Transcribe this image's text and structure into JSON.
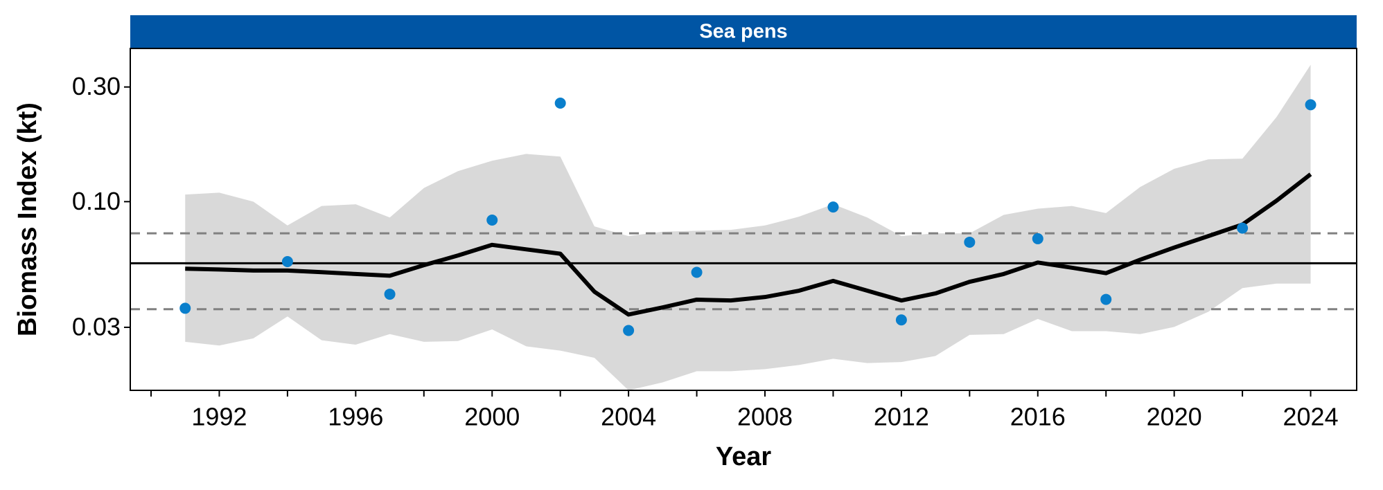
{
  "chart_data": {
    "type": "line",
    "strip_title": "Sea pens",
    "xlabel": "Year",
    "ylabel": "Biomass Index (kt)",
    "yscale": "log",
    "x": [
      1991,
      1992,
      1993,
      1994,
      1995,
      1996,
      1997,
      1998,
      1999,
      2000,
      2001,
      2002,
      2003,
      2004,
      2005,
      2006,
      2007,
      2008,
      2009,
      2010,
      2011,
      2012,
      2013,
      2014,
      2015,
      2016,
      2017,
      2018,
      2019,
      2020,
      2021,
      2022,
      2023,
      2024
    ],
    "values": [
      0.0526,
      0.0522,
      0.0517,
      0.0517,
      0.0509,
      0.05,
      0.0492,
      0.0544,
      0.0597,
      0.0661,
      0.0633,
      0.0607,
      0.0422,
      0.0339,
      0.0363,
      0.0391,
      0.0388,
      0.0401,
      0.0426,
      0.0468,
      0.0426,
      0.0388,
      0.0415,
      0.0464,
      0.05,
      0.0558,
      0.0531,
      0.0504,
      0.0573,
      0.0644,
      0.0719,
      0.0803,
      0.1009,
      0.13
    ],
    "upper": [
      0.107,
      0.109,
      0.1,
      0.0796,
      0.0959,
      0.0975,
      0.0859,
      0.114,
      0.134,
      0.148,
      0.158,
      0.154,
      0.0789,
      0.0719,
      0.075,
      0.0757,
      0.0763,
      0.0796,
      0.0866,
      0.0975,
      0.0859,
      0.0719,
      0.0738,
      0.0738,
      0.0881,
      0.0935,
      0.0959,
      0.0896,
      0.115,
      0.137,
      0.15,
      0.151,
      0.225,
      0.371
    ],
    "lower": [
      0.0261,
      0.0252,
      0.027,
      0.0333,
      0.0265,
      0.0254,
      0.0281,
      0.0261,
      0.0263,
      0.0294,
      0.025,
      0.024,
      0.0224,
      0.0164,
      0.0177,
      0.0197,
      0.0197,
      0.0201,
      0.0209,
      0.0222,
      0.0213,
      0.0215,
      0.0228,
      0.0279,
      0.0281,
      0.0325,
      0.0289,
      0.0289,
      0.0281,
      0.0301,
      0.0348,
      0.0437,
      0.0456,
      0.0456
    ],
    "points": {
      "x": [
        1991,
        1994,
        1997,
        2000,
        2002,
        2004,
        2006,
        2010,
        2012,
        2014,
        2016,
        2018,
        2022,
        2024
      ],
      "values": [
        0.036,
        0.0563,
        0.0412,
        0.0838,
        0.257,
        0.0291,
        0.0508,
        0.095,
        0.0322,
        0.0678,
        0.0701,
        0.0392,
        0.0776,
        0.253
      ],
      "color": "#0a7fcc"
    },
    "line_color": "#000000",
    "ribbon_color": "#d9d9d9",
    "strip_color": "#0055a4",
    "hlines": {
      "solid": 0.0554,
      "dashed": [
        0.0738,
        0.0357
      ],
      "dashed_color": "#808080"
    },
    "xlim": [
      1989.39,
      2025.35
    ],
    "ylim": [
      0.0164,
      0.434
    ],
    "xticks": [
      1992,
      1996,
      2000,
      2004,
      2008,
      2012,
      2016,
      2020,
      2024
    ],
    "x_minor_ticks": [
      1990,
      1994,
      1998,
      2002,
      2006,
      2010,
      2014,
      2018,
      2022
    ],
    "yticks": [
      0.03,
      {
        "value": 0.1,
        "label": "0.10"
      },
      {
        "value": 0.3,
        "label": "0.30"
      }
    ]
  }
}
